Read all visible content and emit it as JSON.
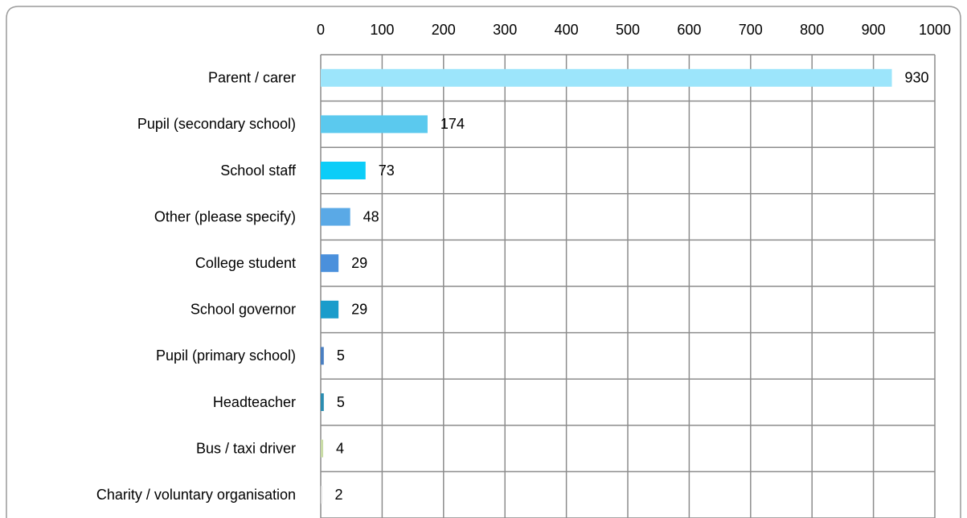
{
  "chart_data": {
    "type": "bar",
    "categories": [
      "Parent / carer",
      "Pupil (secondary school)",
      "School staff",
      "Other (please specify)",
      "College student",
      "School governor",
      "Pupil (primary school)",
      "Headteacher",
      "Bus / taxi driver",
      "Charity / voluntary organisation"
    ],
    "values": [
      930,
      174,
      73,
      48,
      29,
      29,
      5,
      5,
      4,
      2
    ],
    "colors": [
      "#9ce5fb",
      "#5bc9ee",
      "#0ccdf8",
      "#5aa9e6",
      "#4a90dc",
      "#1a9ccb",
      "#4a7fc2",
      "#2b8db1",
      "#c9dca6",
      "#d6d6d6"
    ],
    "xlim": [
      0,
      1000
    ],
    "xticks": [
      0,
      100,
      200,
      300,
      400,
      500,
      600,
      700,
      800,
      900,
      1000
    ],
    "grid": true
  }
}
